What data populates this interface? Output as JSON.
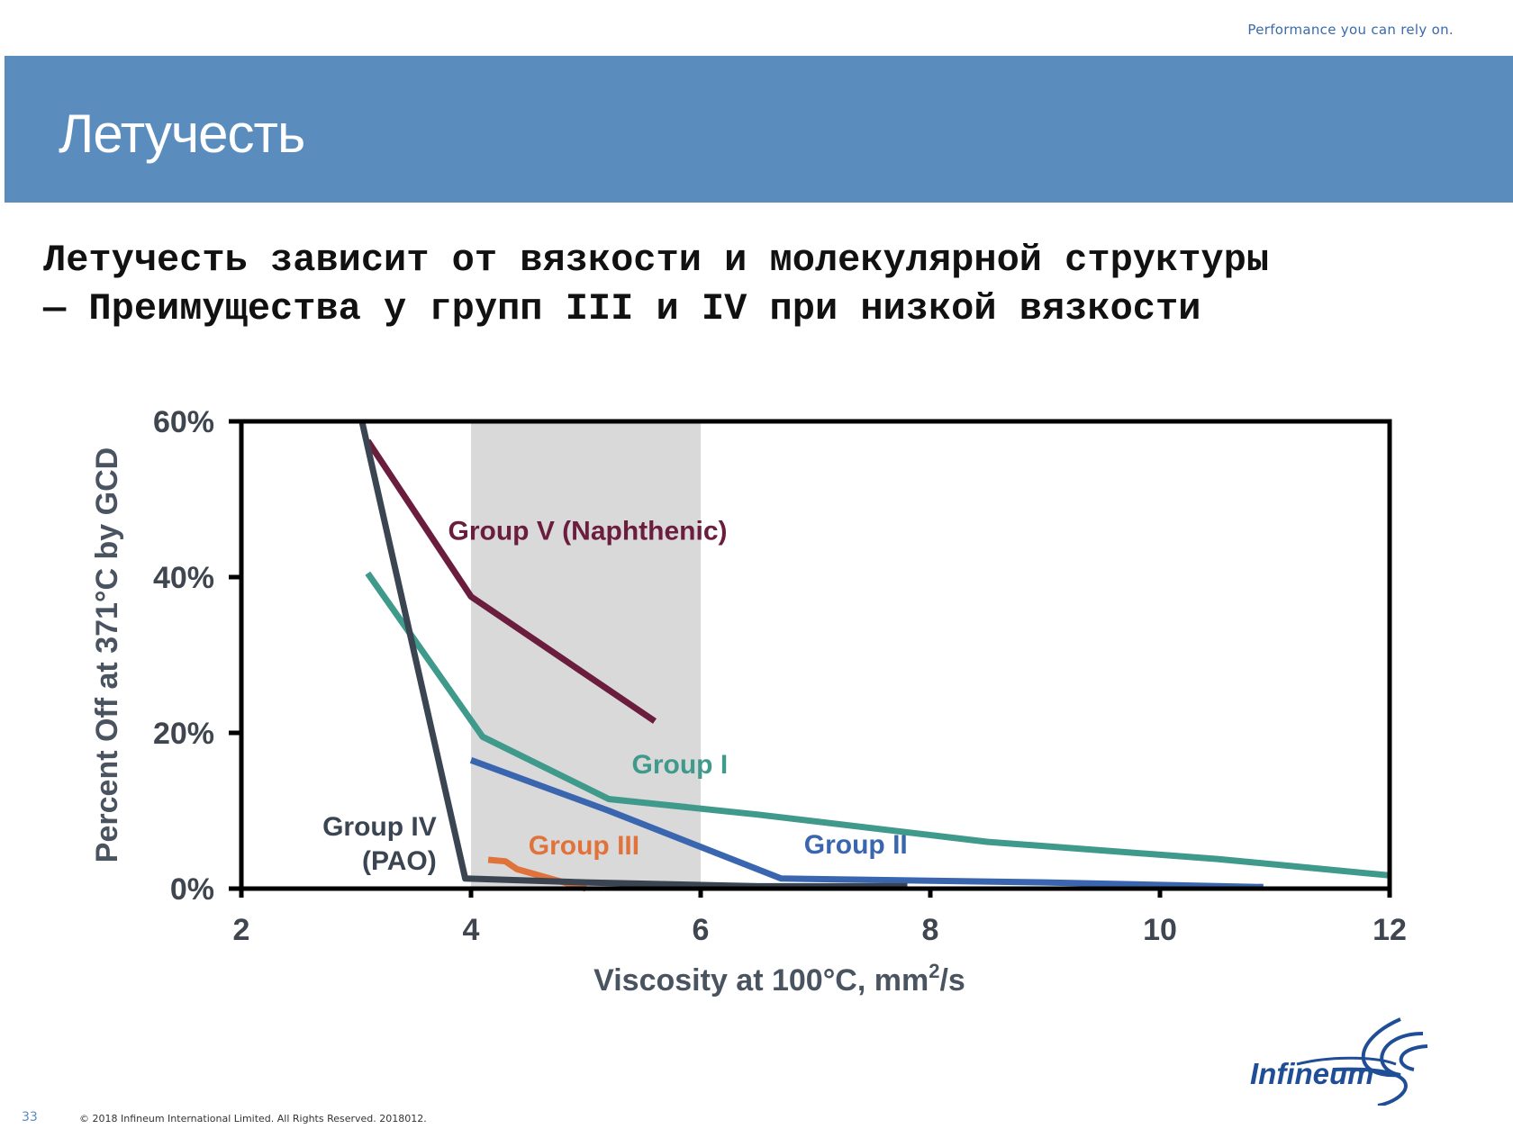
{
  "header": {
    "tagline": "Performance you can rely on.",
    "title": "Летучесть"
  },
  "subtitle": {
    "line1": "Летучесть зависит от вязкости и молекулярной структуры",
    "line2": "— Преимущества у групп III и IV при низкой вязкости"
  },
  "chart_data": {
    "type": "line",
    "xlabel_main": "Viscosity at 100°C, mm",
    "xlabel_sup": "2",
    "xlabel_tail": "/s",
    "ylabel": "Percent Off at 371°C by GCD",
    "xlim": [
      2,
      12
    ],
    "ylim": [
      0,
      60
    ],
    "x_ticks": [
      2,
      4,
      6,
      8,
      10,
      12
    ],
    "y_ticks": [
      {
        "value": 0,
        "label": "0%"
      },
      {
        "value": 20,
        "label": "20%"
      },
      {
        "value": 40,
        "label": "40%"
      },
      {
        "value": 60,
        "label": "60%"
      }
    ],
    "shaded_region": {
      "x_from": 4,
      "x_to": 6,
      "color": "#d9d9d9"
    },
    "grid": false,
    "series": [
      {
        "name": "Group V (Naphthenic)",
        "color": "#6b1d3e",
        "points": [
          [
            3.1,
            57.5
          ],
          [
            4.0,
            37.5
          ],
          [
            5.6,
            21.5
          ]
        ],
        "label": {
          "lines": [
            "Group V (Naphthenic)"
          ],
          "x": 3.8,
          "y": 44.8,
          "anchor": "start"
        }
      },
      {
        "name": "Group I",
        "color": "#3f9a8c",
        "points": [
          [
            3.1,
            40.5
          ],
          [
            4.1,
            19.5
          ],
          [
            5.2,
            11.5
          ],
          [
            6.5,
            9.5
          ],
          [
            8.5,
            6.0
          ],
          [
            10.5,
            3.8
          ],
          [
            12.0,
            1.7
          ]
        ],
        "label": {
          "lines": [
            "Group I"
          ],
          "x": 5.4,
          "y": 14.8,
          "anchor": "start"
        }
      },
      {
        "name": "Group II",
        "color": "#3a66b0",
        "points": [
          [
            4.0,
            16.5
          ],
          [
            5.2,
            10.0
          ],
          [
            6.7,
            1.3
          ],
          [
            9.0,
            0.8
          ],
          [
            10.9,
            0.2
          ]
        ],
        "label": {
          "lines": [
            "Group II"
          ],
          "x": 6.9,
          "y": 4.5,
          "anchor": "start"
        }
      },
      {
        "name": "Group III",
        "color": "#e0733c",
        "points": [
          [
            4.15,
            3.7
          ],
          [
            4.3,
            3.5
          ],
          [
            4.4,
            2.5
          ],
          [
            5.0,
            0.0
          ]
        ],
        "label": {
          "lines": [
            "Group III"
          ],
          "x": 4.5,
          "y": 4.4,
          "anchor": "start"
        }
      },
      {
        "name": "Group IV (PAO)",
        "color": "#3b4552",
        "points": [
          [
            3.05,
            60.0
          ],
          [
            3.95,
            1.3
          ],
          [
            5.0,
            0.8
          ],
          [
            6.5,
            0.3
          ],
          [
            7.8,
            0.3
          ]
        ],
        "label": {
          "lines": [
            "Group IV",
            "(PAO)"
          ],
          "x": 3.7,
          "y": 6.8,
          "anchor": "end"
        }
      }
    ]
  },
  "footer": {
    "slide_number": "33",
    "copyright": "© 2018 Infineum International Limited. All Rights Reserved. 2018012.",
    "logo_text": "Infineum",
    "logo_color": "#1f4e96"
  }
}
